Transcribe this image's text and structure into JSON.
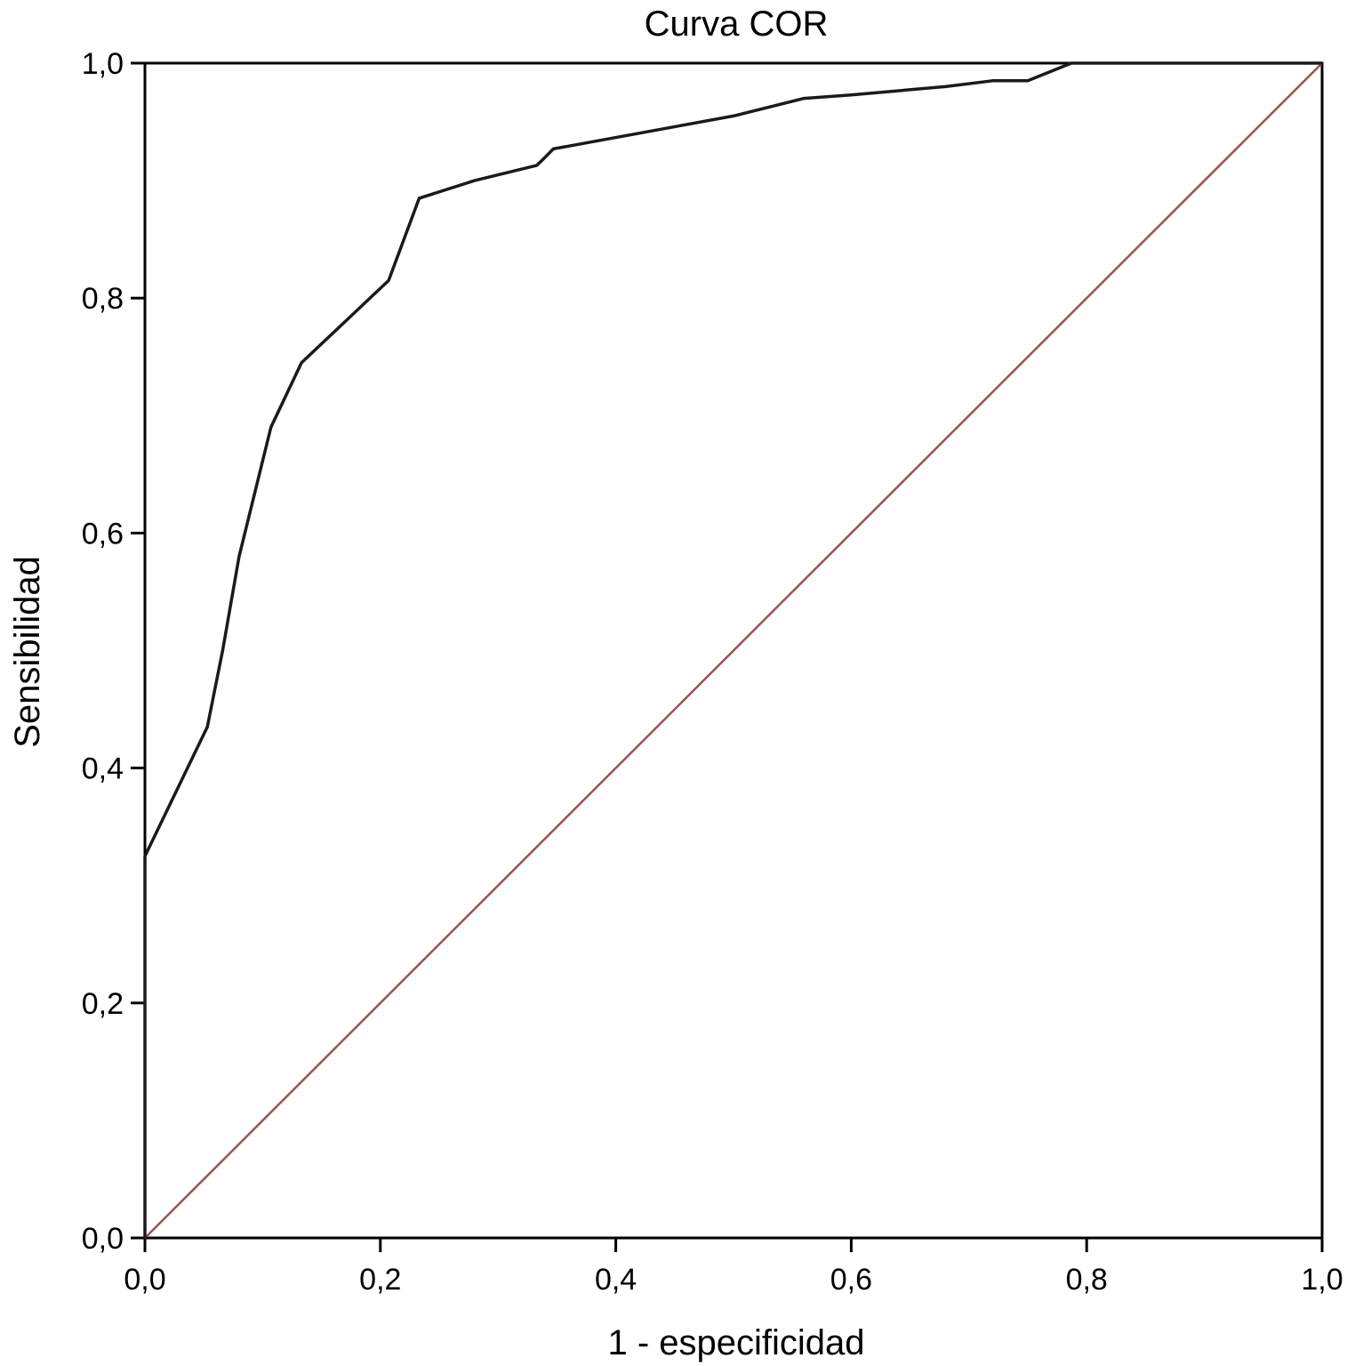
{
  "chart_data": {
    "type": "line",
    "title": "Curva COR",
    "xlabel": "1 - especificidad",
    "ylabel": "Sensibilidad",
    "xlim": [
      0,
      1
    ],
    "ylim": [
      0,
      1
    ],
    "x_ticks": [
      "0,0",
      "0,2",
      "0,4",
      "0,6",
      "0,8",
      "1,0"
    ],
    "y_ticks": [
      "0,0",
      "0,2",
      "0,4",
      "0,6",
      "0,8",
      "1,0"
    ],
    "grid": false,
    "legend": "none",
    "colors": {
      "roc": "#1a1a1a",
      "reference": "#a0504a"
    },
    "series": [
      {
        "x": [
          0,
          0,
          0.053,
          0.066,
          0.08,
          0.107,
          0.133,
          0.207,
          0.233,
          0.28,
          0.333,
          0.34,
          0.347,
          0.5,
          0.56,
          0.6,
          0.68,
          0.72,
          0.75,
          0.787,
          1
        ],
        "y": [
          0,
          0.325,
          0.435,
          0.5,
          0.58,
          0.69,
          0.745,
          0.815,
          0.885,
          0.9,
          0.913,
          0.92,
          0.927,
          0.955,
          0.97,
          0.973,
          0.98,
          0.985,
          0.985,
          1,
          1
        ]
      },
      {
        "x": [
          0,
          1
        ],
        "y": [
          0,
          1
        ]
      }
    ]
  }
}
